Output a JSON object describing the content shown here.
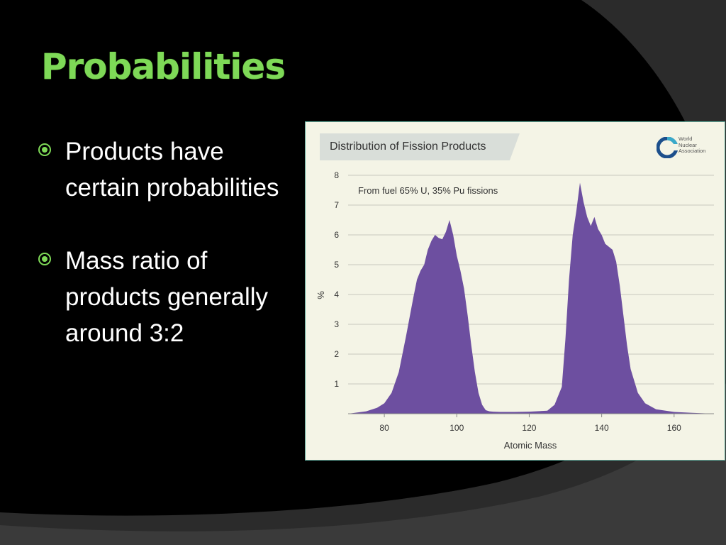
{
  "slide": {
    "title": "Probabilities",
    "bullets": [
      "Products have certain probabilities",
      "Mass ratio of products generally around 3:2"
    ]
  },
  "colors": {
    "background": "#000000",
    "title": "#7ed957",
    "bullet_marker": "#7ed957",
    "chart_fill": "#6d4fa0",
    "panel": "#f4f4e6"
  },
  "logo": {
    "text": [
      "World",
      "Nuclear",
      "Association"
    ]
  },
  "chart_data": {
    "type": "area",
    "title": "Distribution of Fission Products",
    "annotation": "From fuel 65% U, 35% Pu fissions",
    "xlabel": "Atomic Mass",
    "ylabel": "%",
    "xlim": [
      70,
      171
    ],
    "ylim": [
      0,
      8
    ],
    "x_ticks": [
      80,
      100,
      120,
      140,
      160
    ],
    "y_ticks": [
      1,
      2,
      3,
      4,
      5,
      6,
      7,
      8
    ],
    "grid": "horizontal",
    "series": [
      {
        "color": "#6d4fa0",
        "x": [
          70,
          75,
          78,
          80,
          82,
          84,
          86,
          88,
          89,
          90,
          91,
          92,
          93,
          94,
          95,
          96,
          97,
          98,
          99,
          100,
          101,
          102,
          103,
          104,
          105,
          106,
          107,
          108,
          109,
          110,
          112,
          116,
          120,
          125,
          127,
          128,
          129,
          130,
          131,
          132,
          133,
          134,
          135,
          136,
          137,
          138,
          139,
          140,
          141,
          142,
          143,
          144,
          145,
          146,
          147,
          148,
          150,
          152,
          155,
          160,
          165,
          171
        ],
        "y": [
          0,
          0.08,
          0.2,
          0.35,
          0.7,
          1.4,
          2.6,
          3.9,
          4.5,
          4.8,
          5.0,
          5.5,
          5.8,
          6.0,
          5.9,
          5.85,
          6.1,
          6.5,
          6.0,
          5.3,
          4.8,
          4.2,
          3.3,
          2.3,
          1.4,
          0.7,
          0.3,
          0.12,
          0.08,
          0.07,
          0.06,
          0.06,
          0.07,
          0.1,
          0.3,
          0.6,
          0.9,
          2.5,
          4.5,
          6.0,
          6.8,
          7.75,
          7.1,
          6.6,
          6.3,
          6.6,
          6.2,
          6.0,
          5.7,
          5.6,
          5.5,
          5.1,
          4.3,
          3.3,
          2.3,
          1.5,
          0.7,
          0.35,
          0.15,
          0.06,
          0.03,
          0.0
        ]
      }
    ]
  }
}
